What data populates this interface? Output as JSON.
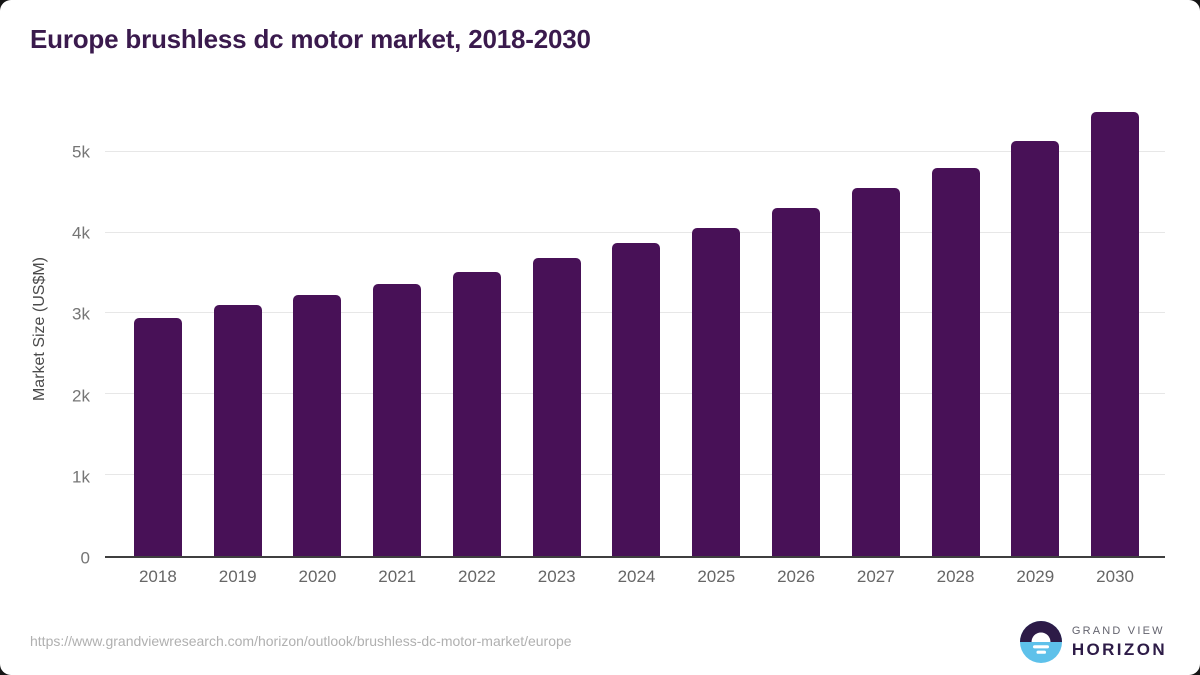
{
  "header": {
    "title": "Europe brushless dc motor market, 2018-2030"
  },
  "chart_data": {
    "type": "bar",
    "title": "Europe brushless dc motor market, 2018-2030",
    "xlabel": "",
    "ylabel": "Market Size (US$M)",
    "categories": [
      "2018",
      "2019",
      "2020",
      "2021",
      "2022",
      "2023",
      "2024",
      "2025",
      "2026",
      "2027",
      "2028",
      "2029",
      "2030"
    ],
    "values": [
      2950,
      3100,
      3230,
      3360,
      3510,
      3690,
      3870,
      4060,
      4300,
      4550,
      4800,
      5130,
      5490
    ],
    "ylim": [
      0,
      5640
    ],
    "yticks": [
      {
        "value": 0,
        "label": "0"
      },
      {
        "value": 1000,
        "label": "1k"
      },
      {
        "value": 2000,
        "label": "2k"
      },
      {
        "value": 3000,
        "label": "3k"
      },
      {
        "value": 4000,
        "label": "4k"
      },
      {
        "value": 5000,
        "label": "5k"
      }
    ],
    "grid": "horizontal",
    "legend_position": "none",
    "bar_color": "#481157"
  },
  "footer": {
    "source_url": "https://www.grandviewresearch.com/horizon/outlook/brushless-dc-motor-market/europe",
    "logo": {
      "line1": "GRAND VIEW",
      "line2": "HORIZON"
    }
  },
  "colors": {
    "bar": "#481157",
    "title_text": "#3a1a4d",
    "axis_line": "#3f3f3f",
    "gridline": "#e7e7e7",
    "tick_label": "#757575",
    "x_label": "#666666",
    "y_axis_title": "#4a4a4a",
    "url_text": "#b0b0b0",
    "logo_dark": "#2d1b47",
    "logo_blue": "#5ec1ea",
    "logo_gray": "#63636e"
  }
}
